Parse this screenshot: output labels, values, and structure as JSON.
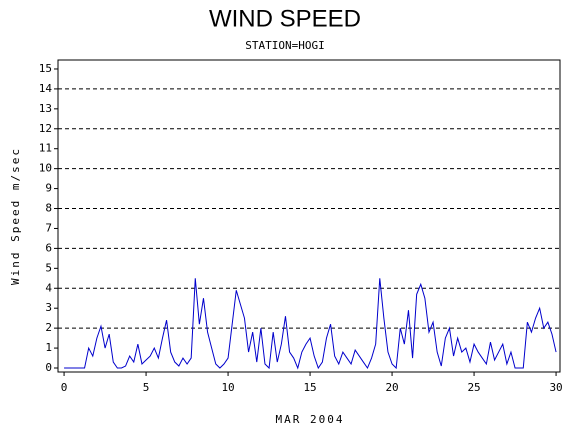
{
  "chart_data": {
    "type": "line",
    "title": "WIND SPEED",
    "subtitle": "STATION=HOGI",
    "x_label": "MAR 2004",
    "y_label": "Wind Speed m/sec",
    "x": [
      0,
      0.25,
      0.5,
      0.75,
      1,
      1.25,
      1.5,
      1.75,
      2,
      2.25,
      2.5,
      2.75,
      3,
      3.25,
      3.5,
      3.75,
      4,
      4.25,
      4.5,
      4.75,
      5,
      5.25,
      5.5,
      5.75,
      6,
      6.25,
      6.5,
      6.75,
      7,
      7.25,
      7.5,
      7.75,
      8,
      8.25,
      8.5,
      8.75,
      9,
      9.25,
      9.5,
      9.75,
      10,
      10.25,
      10.5,
      10.75,
      11,
      11.25,
      11.5,
      11.75,
      12,
      12.25,
      12.5,
      12.75,
      13,
      13.25,
      13.5,
      13.75,
      14,
      14.25,
      14.5,
      14.75,
      15,
      15.25,
      15.5,
      15.75,
      16,
      16.25,
      16.5,
      16.75,
      17,
      17.25,
      17.5,
      17.75,
      18,
      18.25,
      18.5,
      18.75,
      19,
      19.25,
      19.5,
      19.75,
      20,
      20.25,
      20.5,
      20.75,
      21,
      21.25,
      21.5,
      21.75,
      22,
      22.25,
      22.5,
      22.75,
      23,
      23.25,
      23.5,
      23.75,
      24,
      24.25,
      24.5,
      24.75,
      25,
      25.25,
      25.5,
      25.75,
      26,
      26.25,
      26.5,
      26.75,
      27,
      27.25,
      27.5,
      27.75,
      28,
      28.25,
      28.5,
      28.75,
      29,
      29.25,
      29.5,
      29.75,
      30
    ],
    "series": [
      {
        "name": "Wind Speed",
        "color": "#0000cc",
        "values": [
          0,
          0,
          0,
          0,
          0,
          0,
          1.0,
          0.6,
          1.5,
          2.1,
          1.0,
          1.7,
          0.3,
          0,
          0,
          0.1,
          0.6,
          0.3,
          1.2,
          0.2,
          0.4,
          0.6,
          1.0,
          0.5,
          1.5,
          2.4,
          0.8,
          0.3,
          0.1,
          0.5,
          0.2,
          0.5,
          4.5,
          2.2,
          3.5,
          1.8,
          1.0,
          0.2,
          0,
          0.2,
          0.5,
          2.2,
          3.9,
          3.2,
          2.5,
          0.8,
          1.8,
          0.3,
          2.0,
          0.2,
          0,
          1.8,
          0.3,
          1.2,
          2.6,
          0.8,
          0.5,
          0,
          0.8,
          1.2,
          1.5,
          0.6,
          0,
          0.3,
          1.5,
          2.2,
          0.6,
          0.2,
          0.8,
          0.5,
          0.2,
          0.9,
          0.6,
          0.3,
          0,
          0.5,
          1.2,
          4.5,
          2.5,
          0.8,
          0.2,
          0,
          2.0,
          1.2,
          2.9,
          0.5,
          3.7,
          4.2,
          3.5,
          1.8,
          2.3,
          0.8,
          0.1,
          1.5,
          2.0,
          0.6,
          1.5,
          0.8,
          1.0,
          0.3,
          1.2,
          0.8,
          0.5,
          0.2,
          1.3,
          0.4,
          0.8,
          1.2,
          0.2,
          0.8,
          0,
          0,
          0,
          2.3,
          1.8,
          2.5,
          3.0,
          2.0,
          2.3,
          1.7,
          0.8
        ]
      }
    ],
    "xlim": [
      -0.37,
      30.24
    ],
    "xticks": [
      0,
      5,
      10,
      15,
      20,
      25,
      30
    ],
    "ylim": [
      -0.2,
      15.45
    ],
    "yticks": [
      0,
      1,
      2,
      3,
      4,
      5,
      6,
      7,
      8,
      9,
      10,
      11,
      12,
      13,
      14,
      15
    ],
    "grid_y": [
      2,
      4,
      6,
      8,
      10,
      12,
      14
    ]
  }
}
